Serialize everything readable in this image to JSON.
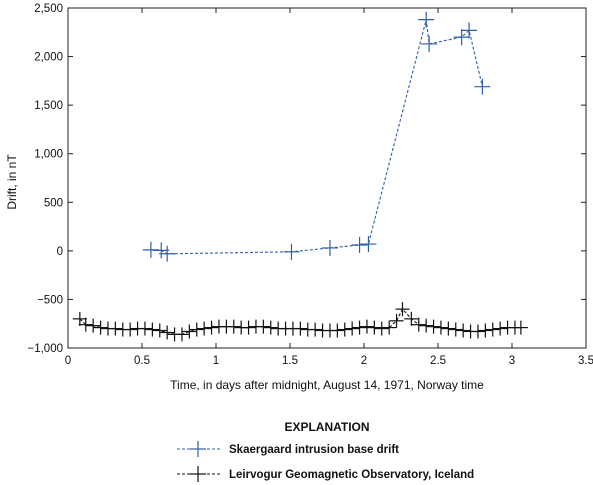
{
  "chart_data": {
    "type": "line",
    "xlabel": "Time, in days after midnight, August 14, 1971, Norway time",
    "ylabel": "Drift, in nT",
    "xlim": [
      0,
      3.5
    ],
    "ylim": [
      -1000,
      2500
    ],
    "x_ticks": [
      0,
      0.5,
      1,
      1.5,
      2,
      2.5,
      3,
      3.5
    ],
    "x_tick_labels": [
      "0",
      "0.5",
      "1",
      "1.5",
      "2",
      "2.5",
      "3",
      "3.5"
    ],
    "y_ticks": [
      -1000,
      -500,
      0,
      500,
      1000,
      1500,
      2000,
      2500
    ],
    "y_tick_labels": [
      "−1,000",
      "−500",
      "0",
      "500",
      "1,000",
      "1,500",
      "2,000",
      "2,500"
    ],
    "grid": false,
    "legend_title": "EXPLANATION",
    "legend_position": "bottom",
    "series": [
      {
        "name": "Skaergaard intrusion base drift",
        "color": "#2f5fa7",
        "line_style": "dashed",
        "marker": "plus",
        "x": [
          0.56,
          0.63,
          0.67,
          1.51,
          1.77,
          1.97,
          2.03,
          2.42,
          2.44,
          2.66,
          2.71,
          2.8
        ],
        "y": [
          10,
          5,
          -30,
          -10,
          30,
          60,
          70,
          2380,
          2130,
          2200,
          2270,
          1690
        ]
      },
      {
        "name": "Leirvogur Geomagnetic Observatory, Iceland",
        "color": "#111111",
        "line_style": "dashed",
        "marker": "plus",
        "x": [
          0.08,
          0.12,
          0.17,
          0.22,
          0.27,
          0.32,
          0.37,
          0.42,
          0.47,
          0.52,
          0.57,
          0.62,
          0.67,
          0.72,
          0.77,
          0.82,
          0.87,
          0.92,
          0.97,
          1.02,
          1.07,
          1.12,
          1.17,
          1.22,
          1.27,
          1.32,
          1.37,
          1.42,
          1.47,
          1.52,
          1.57,
          1.62,
          1.67,
          1.72,
          1.77,
          1.82,
          1.87,
          1.92,
          1.97,
          2.02,
          2.07,
          2.12,
          2.17,
          2.22,
          2.26,
          2.32,
          2.37,
          2.42,
          2.47,
          2.52,
          2.57,
          2.62,
          2.67,
          2.72,
          2.77,
          2.82,
          2.87,
          2.92,
          2.97,
          3.02,
          3.06
        ],
        "y": [
          -700,
          -760,
          -770,
          -790,
          -800,
          -800,
          -810,
          -810,
          -800,
          -800,
          -810,
          -820,
          -840,
          -860,
          -860,
          -830,
          -810,
          -800,
          -790,
          -780,
          -780,
          -780,
          -790,
          -790,
          -780,
          -780,
          -790,
          -800,
          -800,
          -800,
          -800,
          -810,
          -810,
          -820,
          -820,
          -820,
          -810,
          -800,
          -790,
          -780,
          -790,
          -800,
          -790,
          -720,
          -600,
          -700,
          -760,
          -770,
          -780,
          -790,
          -800,
          -810,
          -820,
          -830,
          -830,
          -820,
          -810,
          -800,
          -790,
          -790,
          -790
        ]
      }
    ]
  }
}
